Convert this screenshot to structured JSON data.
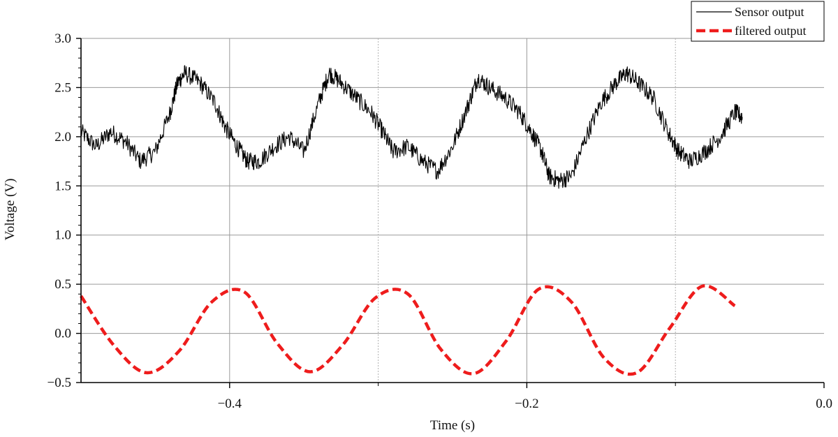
{
  "chart_data": {
    "type": "line",
    "title": "",
    "xlabel": "Time (s)",
    "ylabel": "Voltage (V)",
    "xlim": [
      -0.5,
      0.0
    ],
    "ylim": [
      -0.5,
      3.0
    ],
    "x_ticks": [
      -0.4,
      -0.2,
      0.0
    ],
    "x_tick_labels": [
      "−0.4",
      "−0.2",
      "0.0"
    ],
    "x_minor_gridlines": [
      -0.3,
      -0.1
    ],
    "y_ticks": [
      3.0,
      2.5,
      2.0,
      1.5,
      1.0,
      0.5,
      0.0,
      -0.5
    ],
    "y_tick_labels": [
      "3.0",
      "2.5",
      "2.0",
      "1.5",
      "1.0",
      "0.5",
      "0.0",
      "−0.5"
    ],
    "grid": true,
    "legend_position": "top-right",
    "series": [
      {
        "name": "Sensor output",
        "color": "#000000",
        "style": "solid",
        "x": [
          -0.5,
          -0.49,
          -0.48,
          -0.47,
          -0.46,
          -0.45,
          -0.44,
          -0.435,
          -0.43,
          -0.42,
          -0.41,
          -0.403,
          -0.395,
          -0.388,
          -0.38,
          -0.37,
          -0.36,
          -0.35,
          -0.34,
          -0.333,
          -0.325,
          -0.315,
          -0.305,
          -0.297,
          -0.29,
          -0.28,
          -0.27,
          -0.26,
          -0.25,
          -0.24,
          -0.233,
          -0.225,
          -0.215,
          -0.205,
          -0.197,
          -0.19,
          -0.185,
          -0.178,
          -0.17,
          -0.16,
          -0.15,
          -0.14,
          -0.133,
          -0.125,
          -0.115,
          -0.105,
          -0.098,
          -0.09,
          -0.08,
          -0.07,
          -0.06,
          -0.055
        ],
        "values": [
          2.05,
          1.9,
          2.05,
          1.95,
          1.75,
          1.85,
          2.25,
          2.55,
          2.65,
          2.55,
          2.35,
          2.1,
          1.9,
          1.75,
          1.75,
          1.9,
          2.0,
          1.85,
          2.35,
          2.65,
          2.55,
          2.4,
          2.25,
          2.05,
          1.85,
          1.9,
          1.75,
          1.65,
          1.9,
          2.3,
          2.6,
          2.5,
          2.4,
          2.25,
          2.05,
          1.85,
          1.6,
          1.55,
          1.6,
          2.0,
          2.35,
          2.55,
          2.65,
          2.55,
          2.4,
          2.05,
          1.85,
          1.75,
          1.85,
          2.0,
          2.25,
          2.2
        ],
        "noise_amplitude": 0.09
      },
      {
        "name": "filtered output",
        "color": "#ee1c1c",
        "style": "dashed",
        "x": [
          -0.5,
          -0.478,
          -0.456,
          -0.434,
          -0.412,
          -0.39,
          -0.368,
          -0.346,
          -0.324,
          -0.302,
          -0.28,
          -0.258,
          -0.236,
          -0.214,
          -0.192,
          -0.17,
          -0.148,
          -0.126,
          -0.104,
          -0.082,
          -0.06
        ],
        "values": [
          0.38,
          -0.12,
          -0.4,
          -0.18,
          0.32,
          0.42,
          -0.1,
          -0.39,
          -0.12,
          0.36,
          0.4,
          -0.16,
          -0.41,
          -0.08,
          0.45,
          0.32,
          -0.25,
          -0.4,
          0.05,
          0.48,
          0.28
        ]
      }
    ]
  }
}
